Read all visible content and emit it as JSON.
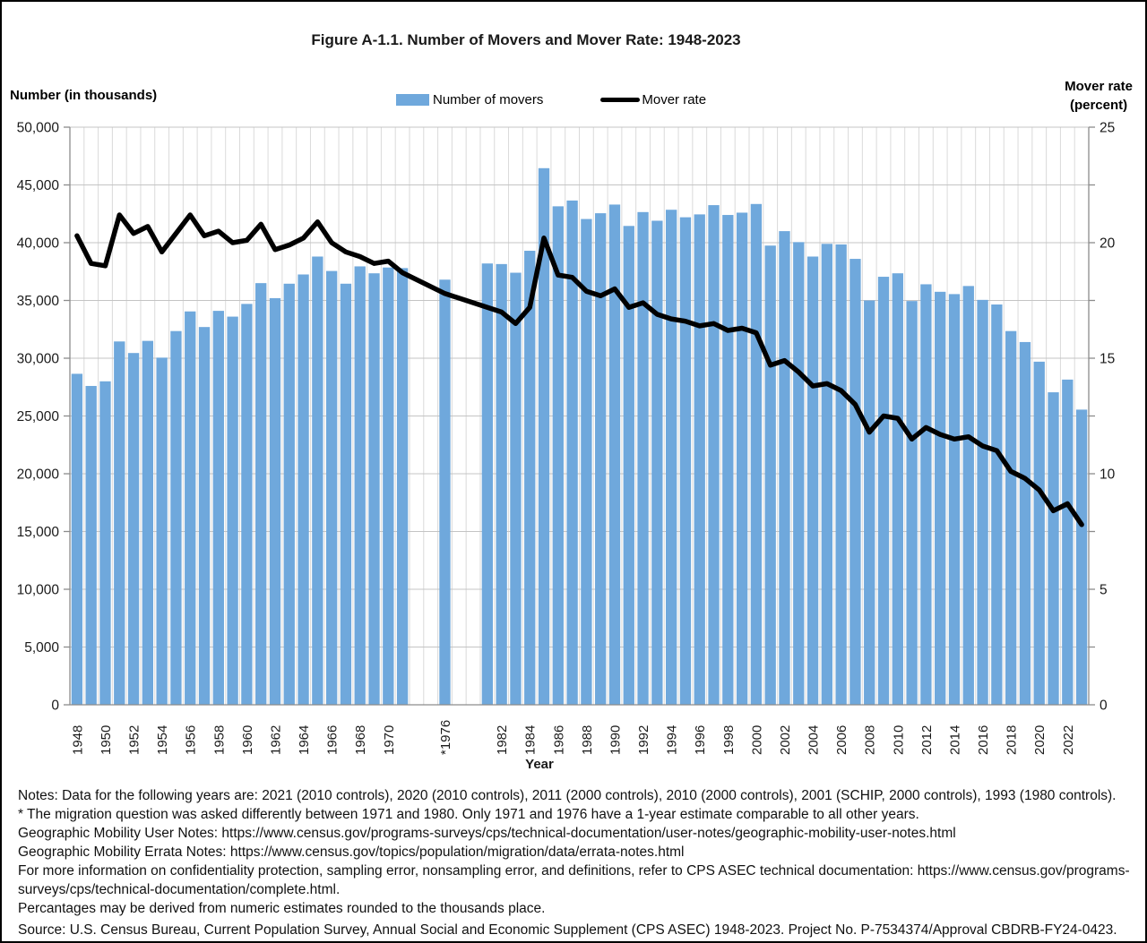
{
  "figure": {
    "title": "Figure A-1.1. Number of Movers and Mover Rate: 1948-2023",
    "left_axis_title": "Number (in thousands)",
    "right_axis_title_line1": "Mover rate",
    "right_axis_title_line2": "(percent)",
    "x_axis_title": "Year",
    "legend": [
      {
        "label": "Number of movers",
        "swatch": "bar",
        "color": "#6FA8DC"
      },
      {
        "label": "Mover rate",
        "swatch": "line",
        "color": "#000000"
      }
    ],
    "notes_lines": [
      "Notes: Data for the following years are: 2021 (2010 controls), 2020 (2010 controls), 2011 (2000 controls), 2010 (2000 controls), 2001 (SCHIP, 2000 controls), 1993 (1980 controls).",
      "* The migration question was asked differently between 1971 and 1980. Only 1971 and 1976 have a 1-year estimate comparable to all other years.",
      "Geographic Mobility User Notes: https://www.census.gov/programs-surveys/cps/technical-documentation/user-notes/geographic-mobility-user-notes.html",
      "Geographic Mobility Errata Notes: https://www.census.gov/topics/population/migration/data/errata-notes.html",
      "For more information on confidentiality protection, sampling error, nonsampling error, and definitions, refer to CPS ASEC technical documentation: https://www.census.gov/programs-",
      "surveys/cps/technical-documentation/complete.html.",
      "Percantages may be derived from numeric estimates rounded to the thousands place."
    ],
    "source": "Source: U.S. Census Bureau, Current Population Survey, Annual Social and Economic Supplement  (CPS ASEC) 1948-2023. Project No. P-7534374/Approval CBDRB-FY24-0423."
  },
  "chart_data": {
    "type": "bar+line",
    "title": "Figure A-1.1. Number of Movers and Mover Rate: 1948-2023",
    "xlabel": "Year",
    "ylabel_left": "Number (in thousands)",
    "ylabel_right": "Mover rate (percent)",
    "grid": true,
    "legend_position": "top-center",
    "missing_years": [
      1972,
      1973,
      1974,
      1975,
      1977,
      1978,
      1979,
      1980
    ],
    "x": [
      1948,
      1949,
      1950,
      1951,
      1952,
      1953,
      1954,
      1955,
      1956,
      1957,
      1958,
      1959,
      1960,
      1961,
      1962,
      1963,
      1964,
      1965,
      1966,
      1967,
      1968,
      1969,
      1970,
      1971,
      1976,
      1981,
      1982,
      1983,
      1984,
      1985,
      1986,
      1987,
      1988,
      1989,
      1990,
      1991,
      1992,
      1993,
      1994,
      1995,
      1996,
      1997,
      1998,
      1999,
      2000,
      2001,
      2002,
      2003,
      2004,
      2005,
      2006,
      2007,
      2008,
      2009,
      2010,
      2011,
      2012,
      2013,
      2014,
      2015,
      2016,
      2017,
      2018,
      2019,
      2020,
      2021,
      2022,
      2023
    ],
    "series": [
      {
        "name": "Number of movers",
        "type": "bar",
        "axis": "left",
        "color": "#6FA8DC",
        "values": [
          28650,
          27600,
          28000,
          31450,
          30450,
          31500,
          30050,
          32350,
          34050,
          32700,
          34100,
          33600,
          34700,
          36500,
          35200,
          36450,
          37250,
          38800,
          37550,
          36450,
          37950,
          37350,
          37850,
          37800,
          36800,
          38200,
          38150,
          37400,
          39300,
          46450,
          43150,
          43650,
          42050,
          42550,
          43300,
          41450,
          42650,
          41900,
          42850,
          42200,
          42450,
          43250,
          42400,
          42600,
          43350,
          39750,
          41000,
          40050,
          38800,
          39900,
          39850,
          38600,
          35000,
          37050,
          37350,
          34950,
          36400,
          35750,
          35550,
          36250,
          35050,
          34650,
          32350,
          31400,
          29700,
          27050,
          28150,
          25550
        ]
      },
      {
        "name": "Mover rate",
        "type": "line",
        "axis": "right",
        "color": "#000000",
        "values": [
          20.3,
          19.1,
          19.0,
          21.2,
          20.4,
          20.7,
          19.6,
          20.4,
          21.2,
          20.3,
          20.5,
          20.0,
          20.1,
          20.8,
          19.7,
          19.9,
          20.2,
          20.9,
          20.0,
          19.6,
          19.4,
          19.1,
          19.2,
          18.7,
          17.8,
          17.2,
          17.0,
          16.5,
          17.2,
          20.2,
          18.6,
          18.5,
          17.9,
          17.7,
          18.0,
          17.2,
          17.4,
          16.9,
          16.7,
          16.6,
          16.4,
          16.5,
          16.2,
          16.3,
          16.1,
          14.7,
          14.9,
          14.4,
          13.8,
          13.9,
          13.6,
          13.0,
          11.8,
          12.5,
          12.4,
          11.5,
          12.0,
          11.7,
          11.5,
          11.6,
          11.2,
          11.0,
          10.1,
          9.8,
          9.3,
          8.4,
          8.7,
          7.8
        ]
      }
    ],
    "left_axis": {
      "min": 0,
      "max": 50000,
      "tick_step": 5000,
      "tick_labels": [
        "0",
        "5,000",
        "10,000",
        "15,000",
        "20,000",
        "25,000",
        "30,000",
        "35,000",
        "40,000",
        "45,000",
        "50,000"
      ]
    },
    "right_axis": {
      "min": 0,
      "max": 25,
      "tick_step": 5,
      "tick_labels": [
        "0",
        "5",
        "10",
        "15",
        "20",
        "25"
      ]
    },
    "x_tick_labels": [
      "1948",
      "1950",
      "1952",
      "1954",
      "1956",
      "1958",
      "1960",
      "1962",
      "1964",
      "1966",
      "1968",
      "1970",
      "*1976",
      "1982",
      "1984",
      "1986",
      "1988",
      "1990",
      "1992",
      "1994",
      "1996",
      "1998",
      "2000",
      "2002",
      "2004",
      "2006",
      "2008",
      "2010",
      "2012",
      "2014",
      "2016",
      "2018",
      "2020",
      "2022"
    ]
  },
  "colors": {
    "bar": "#6FA8DC",
    "line": "#000000",
    "h_gridline": "#C4C4C4",
    "v_gridline": "#DADADA",
    "axis": "#8C8C8C"
  }
}
